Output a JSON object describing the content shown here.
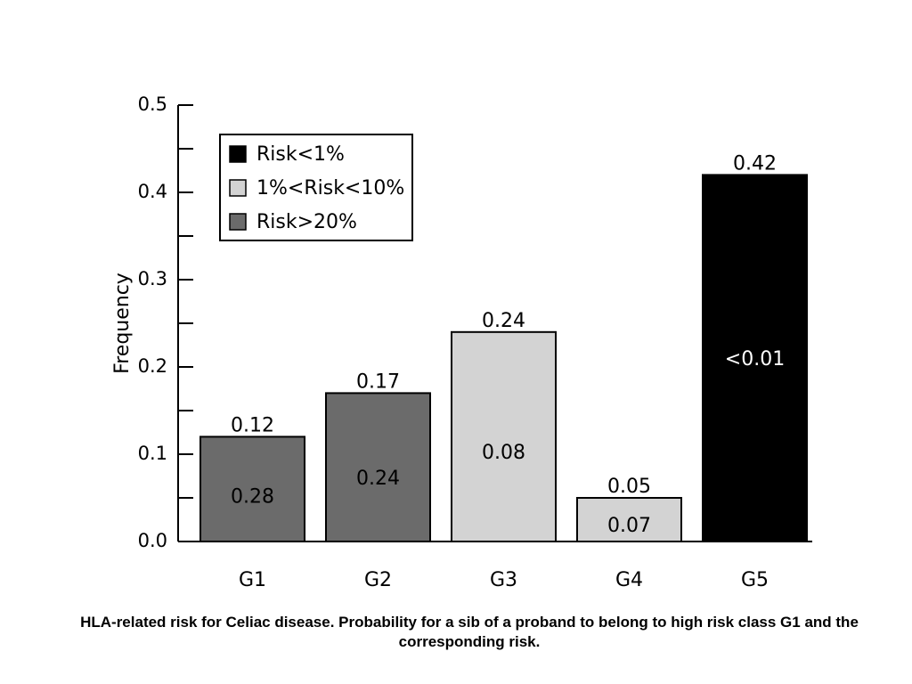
{
  "chart_data": {
    "type": "bar",
    "categories": [
      "G1",
      "G2",
      "G3",
      "G4",
      "G5"
    ],
    "values": [
      0.12,
      0.17,
      0.24,
      0.05,
      0.42
    ],
    "top_labels": [
      "0.12",
      "0.17",
      "0.24",
      "0.05",
      "0.42"
    ],
    "risk_labels": [
      "0.28",
      "0.24",
      "0.08",
      "0.07",
      "<0.01"
    ],
    "bar_series": [
      "Risk>20%",
      "Risk>20%",
      "1%<Risk<10%",
      "1%<Risk<10%",
      "Risk<1%"
    ],
    "series": [
      {
        "name": "Risk<1%",
        "color": "#000000"
      },
      {
        "name": "1%<Risk<10%",
        "color": "#d3d3d3"
      },
      {
        "name": "Risk>20%",
        "color": "#6b6b6b"
      }
    ],
    "ylabel": "Frequency",
    "xlabel": "",
    "ylim": [
      0,
      0.5
    ],
    "yticks": [
      "0.0",
      "0.1",
      "0.2",
      "0.3",
      "0.4",
      "0.5"
    ],
    "ytick_values": [
      0,
      0.1,
      0.2,
      0.3,
      0.4,
      0.5
    ],
    "legend_position": "top-left",
    "grid": false
  },
  "caption": "HLA-related risk for Celiac disease. Probability  for a sib of a proband to belong to high risk class G1 and the corresponding risk."
}
